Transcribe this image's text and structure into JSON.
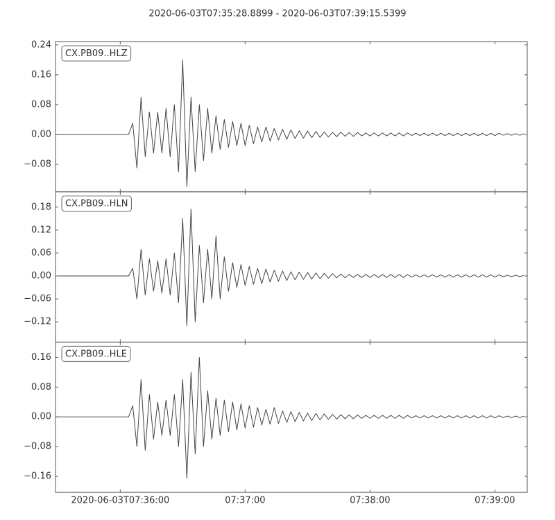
{
  "title": "2020-06-03T07:35:28.8899  -  2020-06-03T07:39:15.5399",
  "xlim": [
    "2020-06-03T07:35:28.8899",
    "2020-06-03T07:39:15.5399"
  ],
  "xticks": [
    "2020-06-03T07:36:00",
    {
      "value": "2020-06-03T07:37:00",
      "label": "07:37:00"
    },
    {
      "value": "2020-06-03T07:38:00",
      "label": "07:38:00"
    },
    {
      "value": "2020-06-03T07:39:00",
      "label": "07:39:00"
    }
  ],
  "x": [
    "07:35:29",
    "07:36:04",
    "07:36:06",
    "07:36:08",
    "07:36:10",
    "07:36:12",
    "07:36:14",
    "07:36:16",
    "07:36:18",
    "07:36:20",
    "07:36:22",
    "07:36:24",
    "07:36:26",
    "07:36:28",
    "07:36:30",
    "07:36:32",
    "07:36:34",
    "07:36:36",
    "07:36:38",
    "07:36:40",
    "07:36:42",
    "07:36:44",
    "07:36:46",
    "07:36:48",
    "07:36:50",
    "07:36:52",
    "07:36:54",
    "07:36:56",
    "07:36:58",
    "07:37:00",
    "07:37:02",
    "07:37:04",
    "07:37:06",
    "07:37:08",
    "07:37:10",
    "07:37:12",
    "07:37:14",
    "07:37:16",
    "07:37:18",
    "07:37:20",
    "07:37:22",
    "07:37:24",
    "07:37:26",
    "07:37:28",
    "07:37:30",
    "07:37:32",
    "07:37:34",
    "07:37:36",
    "07:37:38",
    "07:37:40",
    "07:37:42",
    "07:37:44",
    "07:37:46",
    "07:37:48",
    "07:37:50",
    "07:37:52",
    "07:37:54",
    "07:37:56",
    "07:37:58",
    "07:38:00",
    "07:38:02",
    "07:38:04",
    "07:38:06",
    "07:38:08",
    "07:38:10",
    "07:38:12",
    "07:38:14",
    "07:38:16",
    "07:38:18",
    "07:38:20",
    "07:38:22",
    "07:38:24",
    "07:38:26",
    "07:38:28",
    "07:38:30",
    "07:38:32",
    "07:38:34",
    "07:38:36",
    "07:38:38",
    "07:38:40",
    "07:38:42",
    "07:38:44",
    "07:38:46",
    "07:38:48",
    "07:38:50",
    "07:38:52",
    "07:38:54",
    "07:38:56",
    "07:38:58",
    "07:39:00",
    "07:39:02",
    "07:39:04",
    "07:39:06",
    "07:39:08",
    "07:39:10",
    "07:39:12",
    "07:39:14"
  ],
  "chart_data": [
    {
      "type": "line",
      "label": "CX.PB09..HLZ",
      "color": "#444444",
      "ylim": [
        -0.154,
        0.249
      ],
      "yticks": [
        {
          "value": -0.08,
          "label": "−0.08"
        },
        {
          "value": 0,
          "label": "0.00"
        },
        0.08,
        0.16,
        0.24
      ],
      "values": [
        0,
        0,
        0.03,
        -0.09,
        0.1,
        -0.06,
        0.06,
        -0.05,
        0.06,
        -0.05,
        0.07,
        -0.06,
        0.08,
        -0.1,
        0.2,
        -0.14,
        0.1,
        -0.1,
        0.08,
        -0.07,
        0.07,
        -0.05,
        0.05,
        -0.04,
        0.04,
        -0.035,
        0.035,
        -0.03,
        0.03,
        -0.03,
        0.025,
        -0.025,
        0.02,
        -0.02,
        0.02,
        -0.018,
        0.016,
        -0.015,
        0.014,
        -0.013,
        0.012,
        -0.011,
        0.01,
        -0.01,
        0.009,
        -0.009,
        0.008,
        -0.008,
        0.007,
        -0.007,
        0.006,
        -0.006,
        0.006,
        -0.005,
        0.005,
        -0.005,
        0.005,
        -0.004,
        0.004,
        -0.004,
        0.004,
        -0.004,
        0.004,
        -0.004,
        0.004,
        -0.004,
        0.004,
        -0.004,
        0.004,
        -0.003,
        0.003,
        -0.003,
        0.003,
        -0.003,
        0.003,
        -0.003,
        0.003,
        -0.003,
        0.003,
        -0.003,
        0.003,
        -0.003,
        0.003,
        -0.003,
        0.003,
        -0.003,
        0.003,
        -0.003,
        0.003,
        -0.003,
        0.003,
        -0.002,
        0.002,
        -0.002,
        0.002,
        -0.002,
        0.002
      ]
    },
    {
      "type": "line",
      "label": "CX.PB09..HLN",
      "color": "#444444",
      "ylim": [
        -0.173,
        0.22
      ],
      "yticks": [
        {
          "value": -0.12,
          "label": "−0.12"
        },
        {
          "value": -0.06,
          "label": "−0.06"
        },
        {
          "value": 0,
          "label": "0.00"
        },
        0.06,
        0.12,
        0.18
      ],
      "values": [
        0,
        0,
        0.02,
        -0.06,
        0.07,
        -0.05,
        0.045,
        -0.04,
        0.04,
        -0.045,
        0.045,
        -0.05,
        0.06,
        -0.07,
        0.15,
        -0.13,
        0.175,
        -0.12,
        0.08,
        -0.07,
        0.07,
        -0.06,
        0.105,
        -0.06,
        0.05,
        -0.04,
        0.035,
        -0.03,
        0.03,
        -0.025,
        0.025,
        -0.022,
        0.02,
        -0.02,
        0.018,
        -0.016,
        0.015,
        -0.014,
        0.013,
        -0.012,
        0.011,
        -0.01,
        0.01,
        -0.009,
        0.009,
        -0.008,
        0.008,
        -0.007,
        0.007,
        -0.006,
        0.006,
        -0.005,
        0.005,
        -0.005,
        0.004,
        -0.004,
        0.004,
        -0.004,
        0.004,
        -0.004,
        0.004,
        -0.004,
        0.004,
        -0.004,
        0.004,
        -0.004,
        0.004,
        -0.004,
        0.004,
        -0.003,
        0.003,
        -0.003,
        0.003,
        -0.003,
        0.003,
        -0.003,
        0.003,
        -0.003,
        0.003,
        -0.003,
        0.003,
        -0.003,
        0.003,
        -0.003,
        0.003,
        -0.003,
        0.003,
        -0.003,
        0.003,
        -0.003,
        0.003,
        -0.002,
        0.002,
        -0.002,
        0.002,
        -0.002,
        0.002
      ]
    },
    {
      "type": "line",
      "label": "CX.PB09..HLE",
      "color": "#444444",
      "ylim": [
        -0.203,
        0.201
      ],
      "yticks": [
        {
          "value": -0.16,
          "label": "−0.16"
        },
        {
          "value": -0.08,
          "label": "−0.08"
        },
        {
          "value": 0,
          "label": "0.00"
        },
        0.08,
        0.16
      ],
      "values": [
        0,
        0,
        0.03,
        -0.08,
        0.1,
        -0.09,
        0.06,
        -0.06,
        0.04,
        -0.05,
        0.045,
        -0.05,
        0.06,
        -0.08,
        0.1,
        -0.165,
        0.12,
        -0.1,
        0.16,
        -0.08,
        0.07,
        -0.06,
        0.05,
        -0.05,
        0.045,
        -0.04,
        0.04,
        -0.035,
        0.035,
        -0.03,
        0.03,
        -0.028,
        0.025,
        -0.022,
        0.02,
        -0.02,
        0.025,
        -0.018,
        0.016,
        -0.015,
        0.014,
        -0.013,
        0.012,
        -0.011,
        0.01,
        -0.01,
        0.009,
        -0.008,
        0.008,
        -0.007,
        0.007,
        -0.006,
        0.006,
        -0.005,
        0.005,
        -0.005,
        0.005,
        -0.004,
        0.004,
        -0.004,
        0.004,
        -0.004,
        0.004,
        -0.004,
        0.004,
        -0.004,
        0.004,
        -0.004,
        0.004,
        -0.003,
        0.003,
        -0.003,
        0.003,
        -0.003,
        0.003,
        -0.003,
        0.003,
        -0.003,
        0.003,
        -0.003,
        0.003,
        -0.003,
        0.003,
        -0.003,
        0.003,
        -0.003,
        0.003,
        -0.003,
        0.003,
        -0.003,
        0.003,
        -0.002,
        0.002,
        -0.002,
        0.002,
        -0.002,
        0.002
      ]
    }
  ]
}
